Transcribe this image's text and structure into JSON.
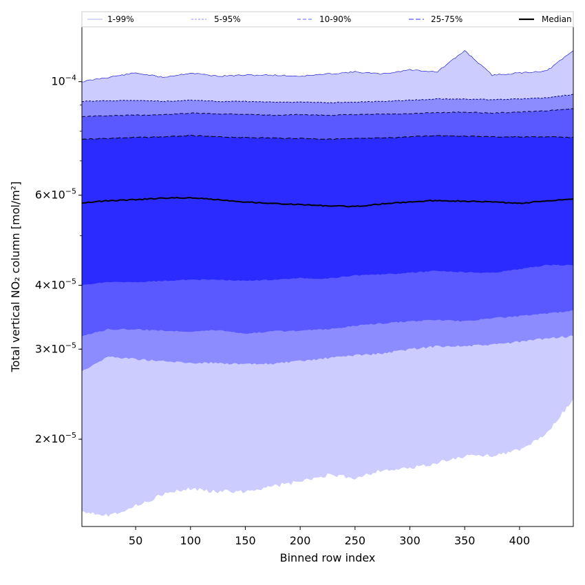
{
  "chart_data": {
    "type": "area",
    "xlabel": "Binned row index",
    "ylabel": "Total vertical NO₂ column [mol/m²]",
    "yscale": "log",
    "xlim": [
      1,
      449
    ],
    "ylim": [
      1.35e-05,
      0.000128
    ],
    "grid": false,
    "legend_position": "top",
    "x_ticks": [
      {
        "value": 50,
        "label": "50"
      },
      {
        "value": 100,
        "label": "100"
      },
      {
        "value": 150,
        "label": "150"
      },
      {
        "value": 200,
        "label": "200"
      },
      {
        "value": 250,
        "label": "250"
      },
      {
        "value": 300,
        "label": "300"
      },
      {
        "value": 350,
        "label": "350"
      },
      {
        "value": 400,
        "label": "400"
      }
    ],
    "y_ticks": [
      {
        "value": 0.0001,
        "base": "10",
        "exp": "−4",
        "mant": ""
      },
      {
        "value": 6e-05,
        "base": "10",
        "exp": "−5",
        "mant": "6"
      },
      {
        "value": 4e-05,
        "base": "10",
        "exp": "−5",
        "mant": "4"
      },
      {
        "value": 3e-05,
        "base": "10",
        "exp": "−5",
        "mant": "3"
      },
      {
        "value": 2e-05,
        "base": "10",
        "exp": "−5",
        "mant": "2"
      }
    ],
    "x": [
      1,
      25,
      50,
      75,
      100,
      125,
      150,
      175,
      200,
      225,
      250,
      275,
      300,
      325,
      350,
      375,
      400,
      425,
      449
    ],
    "bands": [
      {
        "name": "1-99%",
        "color": "#ccccff",
        "line_color": "#0000cc",
        "dash": "",
        "lower": [
          1.45e-05,
          1.42e-05,
          1.48e-05,
          1.56e-05,
          1.6e-05,
          1.58e-05,
          1.58e-05,
          1.62e-05,
          1.65e-05,
          1.7e-05,
          1.68e-05,
          1.74e-05,
          1.75e-05,
          1.8e-05,
          1.85e-05,
          1.86e-05,
          1.9e-05,
          2.05e-05,
          2.4e-05
        ],
        "upper": [
          0.0001,
          0.000102,
          0.000104,
          0.000102,
          0.000104,
          0.0001025,
          0.000103,
          0.000103,
          0.0001025,
          0.0001035,
          0.0001045,
          0.0001035,
          0.0001055,
          0.0001045,
          0.000115,
          0.000103,
          0.000104,
          0.000105,
          0.000115
        ]
      },
      {
        "name": "5-95%",
        "color": "#8c8cff",
        "line_color": "#000080",
        "dash": "3,2",
        "lower": [
          2.72e-05,
          2.9e-05,
          2.87e-05,
          2.84e-05,
          2.82e-05,
          2.82e-05,
          2.8e-05,
          2.81e-05,
          2.84e-05,
          2.88e-05,
          2.92e-05,
          2.94e-05,
          3e-05,
          3.04e-05,
          3.04e-05,
          3.06e-05,
          3.1e-05,
          3.15e-05,
          3.18e-05
        ],
        "upper": [
          9.15e-05,
          9.18e-05,
          9.2e-05,
          9.15e-05,
          9.2e-05,
          9.15e-05,
          9.15e-05,
          9.12e-05,
          9.12e-05,
          9.1e-05,
          9.12e-05,
          9.15e-05,
          9.2e-05,
          9.25e-05,
          9.25e-05,
          9.22e-05,
          9.25e-05,
          9.3e-05,
          9.45e-05
        ]
      },
      {
        "name": "10-90%",
        "color": "#5959ff",
        "line_color": "#000033",
        "dash": "5,3",
        "lower": [
          3.18e-05,
          3.28e-05,
          3.28e-05,
          3.26e-05,
          3.25e-05,
          3.27e-05,
          3.22e-05,
          3.25e-05,
          3.26e-05,
          3.28e-05,
          3.33e-05,
          3.37e-05,
          3.4e-05,
          3.42e-05,
          3.4e-05,
          3.45e-05,
          3.48e-05,
          3.52e-05,
          3.57e-05
        ],
        "upper": [
          8.55e-05,
          8.58e-05,
          8.6e-05,
          8.62e-05,
          8.68e-05,
          8.65e-05,
          8.64e-05,
          8.6e-05,
          8.62e-05,
          8.6e-05,
          8.62e-05,
          8.64e-05,
          8.65e-05,
          8.7e-05,
          8.72e-05,
          8.68e-05,
          8.72e-05,
          8.78e-05,
          8.85e-05
        ]
      },
      {
        "name": "25-75%",
        "color": "#2b2bff",
        "line_color": "#000000",
        "dash": "7,3",
        "lower": [
          4e-05,
          4.06e-05,
          4.05e-05,
          4.08e-05,
          4.1e-05,
          4.1e-05,
          4.08e-05,
          4.1e-05,
          4.13e-05,
          4.12e-05,
          4.18e-05,
          4.2e-05,
          4.23e-05,
          4.27e-05,
          4.24e-05,
          4.23e-05,
          4.3e-05,
          4.38e-05,
          4.38e-05
        ],
        "upper": [
          7.72e-05,
          7.75e-05,
          7.78e-05,
          7.8e-05,
          7.85e-05,
          7.8e-05,
          7.78e-05,
          7.76e-05,
          7.75e-05,
          7.72e-05,
          7.74e-05,
          7.76e-05,
          7.8e-05,
          7.85e-05,
          7.83e-05,
          7.8e-05,
          7.8e-05,
          7.8e-05,
          7.78e-05
        ]
      }
    ],
    "median": {
      "name": "Median",
      "color": "#000000",
      "values": [
        5.8e-05,
        5.85e-05,
        5.88e-05,
        5.92e-05,
        5.93e-05,
        5.88e-05,
        5.82e-05,
        5.78e-05,
        5.75e-05,
        5.72e-05,
        5.7e-05,
        5.77e-05,
        5.82e-05,
        5.86e-05,
        5.84e-05,
        5.82e-05,
        5.78e-05,
        5.85e-05,
        5.9e-05
      ]
    }
  }
}
